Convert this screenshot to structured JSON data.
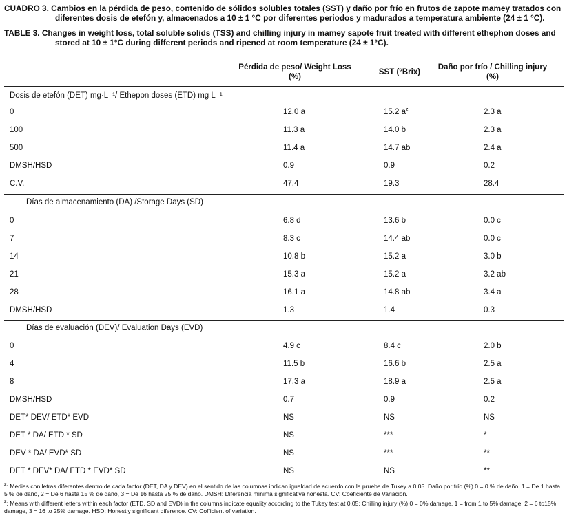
{
  "caption_es": {
    "label": "CUADRO 3.",
    "text": "Cambios en la pérdida de peso, contenido de sólidos solubles totales (SST) y daño por frío en frutos de zapote mamey tratados con diferentes dosis de etefón y, almacenados a 10 ± 1 °C por diferentes periodos y madurados a temperatura ambiente (24 ± 1 °C)."
  },
  "caption_en": {
    "label": "TABLE 3.",
    "text": "Changes in weight loss, total soluble solids (TSS) and chilling injury in mamey sapote  fruit treated with different ethephon doses and stored at 10 ± 1°C during different periods and ripened at room temperature (24 ± 1°C)."
  },
  "table": {
    "headers": [
      "Pérdida de peso/ Weight Loss (%)",
      "SST (°Brix)",
      "Daño por frío / Chilling injury (%)"
    ],
    "sections": [
      {
        "title": "Dosis de etefón (DET) mg·L⁻¹/ Ethepon doses (ETD) mg L⁻¹",
        "rows": [
          {
            "label": "0",
            "weight_loss": "12.0 a",
            "tss": "15.2 a",
            "tss_sup": "z",
            "chilling": "2.3 a"
          },
          {
            "label": "100",
            "weight_loss": "11.3 a",
            "tss": "14.0 b",
            "chilling": "2.3 a"
          },
          {
            "label": "500",
            "weight_loss": "11.4 a",
            "tss": "14.7 ab",
            "chilling": "2.4 a"
          },
          {
            "label": "DMSH/HSD",
            "weight_loss": "0.9",
            "tss": "0.9",
            "chilling": "0.2"
          },
          {
            "label": "C.V.",
            "weight_loss": "47.4",
            "tss": "19.3",
            "chilling": "28.4"
          }
        ]
      },
      {
        "title": "Días de almacenamiento (DA) /Storage Days (SD)",
        "rows": [
          {
            "label": "0",
            "weight_loss": "6.8 d",
            "tss": "13.6 b",
            "chilling": "0.0 c"
          },
          {
            "label": "7",
            "weight_loss": "8.3 c",
            "tss": "14.4 ab",
            "chilling": "0.0 c"
          },
          {
            "label": "14",
            "weight_loss": "10.8 b",
            "tss": "15.2 a",
            "chilling": "3.0 b"
          },
          {
            "label": "21",
            "weight_loss": "15.3 a",
            "tss": "15.2 a",
            "chilling": "3.2 ab"
          },
          {
            "label": "28",
            "weight_loss": "16.1 a",
            "tss": "14.8 ab",
            "chilling": "3.4 a"
          },
          {
            "label": "DMSH/HSD",
            "weight_loss": "1.3",
            "tss": "1.4",
            "chilling": "0.3"
          }
        ]
      },
      {
        "title": "Días de evaluación (DEV)/ Evaluation Days (EVD)",
        "rows": [
          {
            "label": "0",
            "weight_loss": "4.9 c",
            "tss": "8.4 c",
            "chilling": "2.0 b"
          },
          {
            "label": "4",
            "weight_loss": "11.5 b",
            "tss": "16.6 b",
            "chilling": "2.5 a"
          },
          {
            "label": "8",
            "weight_loss": "17.3 a",
            "tss": "18.9 a",
            "chilling": "2.5 a"
          },
          {
            "label": "DMSH/HSD",
            "weight_loss": "0.7",
            "tss": "0.9",
            "chilling": "0.2"
          },
          {
            "label": "DET* DEV/ ETD* EVD",
            "weight_loss": "NS",
            "tss": "NS",
            "chilling": "NS"
          },
          {
            "label": "DET * DA/ ETD * SD",
            "weight_loss": "NS",
            "tss": "***",
            "chilling": "*"
          },
          {
            "label": "DEV * DA/ EVD* SD",
            "weight_loss": "NS",
            "tss": "***",
            "chilling": "**"
          },
          {
            "label": "DET * DEV* DA/ ETD * EVD* SD",
            "weight_loss": "NS",
            "tss": "NS",
            "chilling": "**"
          }
        ]
      }
    ]
  },
  "footnotes": {
    "es": "Medias con letras diferentes dentro de cada factor (DET, DA y DEV) en el sentido de las columnas indican igualdad de acuerdo con la prueba de Tukey a 0.05.  Daño por  frío (%) 0 = 0 % de daño, 1 = De 1 hasta 5 % de daño, 2 = De 6 hasta 15 % de daño, 3 = De 16 hasta 25 % de daño. DMSH: Diferencia mínima significativa honesta. CV: Coeficiente de Variación.",
    "en": "Means with different letters within each factor (ETD, SD and EVD) in the columns indicate equality according to the Tukey test at 0.05; Chilling injury (%) 0 = 0% damage, 1 = from 1 to 5% damage, 2 = 6 to15% damage, 3 = 16 to 25% damage. HSD: Honestly significant diference. CV: Cofficient of variation.",
    "marker": "z"
  }
}
